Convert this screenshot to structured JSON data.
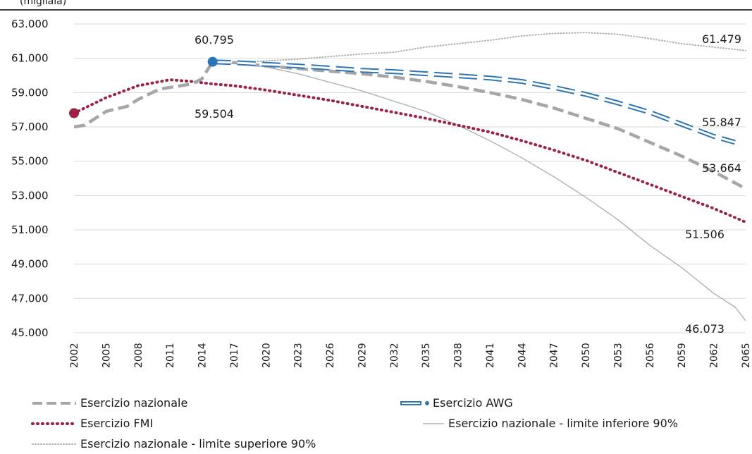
{
  "header": {
    "text": "(migliaia)"
  },
  "chart_data": {
    "type": "line",
    "title": "",
    "xlabel": "",
    "ylabel": "",
    "ylim": [
      45000,
      63000
    ],
    "y_ticks": [
      45000,
      47000,
      49000,
      51000,
      53000,
      55000,
      57000,
      59000,
      61000,
      63000
    ],
    "y_tick_labels": [
      "45.000",
      "47.000",
      "49.000",
      "51.000",
      "53.000",
      "55.000",
      "57.000",
      "59.000",
      "61.000",
      "63.000"
    ],
    "xlim": [
      2002,
      2065
    ],
    "x_ticks": [
      2002,
      2005,
      2008,
      2011,
      2014,
      2017,
      2020,
      2023,
      2026,
      2029,
      2032,
      2035,
      2038,
      2041,
      2044,
      2047,
      2050,
      2053,
      2056,
      2059,
      2062,
      2065
    ],
    "grid": "horizontal",
    "legend_position": "bottom",
    "series": [
      {
        "name": "Esercizio nazionale",
        "color": "#a6a6a6",
        "style": "dashed",
        "points": [
          [
            2002,
            57000
          ],
          [
            2003,
            57100
          ],
          [
            2005,
            57900
          ],
          [
            2007,
            58200
          ],
          [
            2008,
            58600
          ],
          [
            2010,
            59200
          ],
          [
            2012,
            59400
          ],
          [
            2013,
            59500
          ],
          [
            2014,
            59800
          ],
          [
            2015,
            60795
          ],
          [
            2017,
            60750
          ],
          [
            2020,
            60550
          ],
          [
            2023,
            60400
          ],
          [
            2026,
            60250
          ],
          [
            2029,
            60100
          ],
          [
            2032,
            59900
          ],
          [
            2035,
            59650
          ],
          [
            2038,
            59350
          ],
          [
            2041,
            59000
          ],
          [
            2044,
            58600
          ],
          [
            2047,
            58100
          ],
          [
            2050,
            57500
          ],
          [
            2053,
            56900
          ],
          [
            2056,
            56100
          ],
          [
            2059,
            55300
          ],
          [
            2062,
            54400
          ],
          [
            2065,
            53400
          ]
        ],
        "end_label": "53.664"
      },
      {
        "name": "Esercizio AWG",
        "color": "#2e75b6",
        "style": "double",
        "points": [
          [
            2015,
            60795
          ],
          [
            2017,
            60750
          ],
          [
            2020,
            60650
          ],
          [
            2023,
            60550
          ],
          [
            2026,
            60430
          ],
          [
            2029,
            60300
          ],
          [
            2032,
            60220
          ],
          [
            2035,
            60100
          ],
          [
            2038,
            59980
          ],
          [
            2041,
            59850
          ],
          [
            2044,
            59650
          ],
          [
            2047,
            59300
          ],
          [
            2050,
            58900
          ],
          [
            2053,
            58400
          ],
          [
            2056,
            57850
          ],
          [
            2059,
            57150
          ],
          [
            2062,
            56450
          ],
          [
            2064,
            56100
          ]
        ],
        "start_marker": true,
        "start_label": "60.795",
        "end_label": "55.847"
      },
      {
        "name": "Esercizio FMI",
        "color": "#9b2242",
        "style": "dotted",
        "points": [
          [
            2002,
            57800
          ],
          [
            2005,
            58700
          ],
          [
            2008,
            59400
          ],
          [
            2011,
            59750
          ],
          [
            2013,
            59650
          ],
          [
            2015,
            59504
          ],
          [
            2017,
            59400
          ],
          [
            2020,
            59150
          ],
          [
            2023,
            58850
          ],
          [
            2026,
            58550
          ],
          [
            2029,
            58200
          ],
          [
            2032,
            57850
          ],
          [
            2035,
            57500
          ],
          [
            2038,
            57100
          ],
          [
            2041,
            56700
          ],
          [
            2044,
            56200
          ],
          [
            2047,
            55650
          ],
          [
            2050,
            55050
          ],
          [
            2053,
            54350
          ],
          [
            2056,
            53650
          ],
          [
            2059,
            52950
          ],
          [
            2062,
            52250
          ],
          [
            2065,
            51450
          ]
        ],
        "start_marker": true,
        "start_label": "59.504",
        "end_label": "51.506"
      },
      {
        "name": "Esercizio nazionale - limite inferiore 90%",
        "color": "#b0b0b0",
        "style": "solid",
        "points": [
          [
            2015,
            60795
          ],
          [
            2017,
            60700
          ],
          [
            2020,
            60500
          ],
          [
            2023,
            60100
          ],
          [
            2026,
            59600
          ],
          [
            2029,
            59100
          ],
          [
            2032,
            58500
          ],
          [
            2035,
            57900
          ],
          [
            2038,
            57100
          ],
          [
            2041,
            56200
          ],
          [
            2044,
            55200
          ],
          [
            2047,
            54100
          ],
          [
            2050,
            52900
          ],
          [
            2053,
            51600
          ],
          [
            2056,
            50100
          ],
          [
            2059,
            48800
          ],
          [
            2062,
            47300
          ],
          [
            2064,
            46500
          ],
          [
            2065,
            45700
          ]
        ],
        "end_label": "46.073"
      },
      {
        "name": "Esercizio nazionale - limite superiore 90%",
        "color": "#b0b0b0",
        "style": "fine-dotted",
        "points": [
          [
            2015,
            60795
          ],
          [
            2017,
            60720
          ],
          [
            2020,
            60850
          ],
          [
            2023,
            60950
          ],
          [
            2026,
            61100
          ],
          [
            2029,
            61250
          ],
          [
            2032,
            61350
          ],
          [
            2035,
            61650
          ],
          [
            2038,
            61850
          ],
          [
            2041,
            62050
          ],
          [
            2044,
            62300
          ],
          [
            2047,
            62450
          ],
          [
            2050,
            62500
          ],
          [
            2053,
            62400
          ],
          [
            2056,
            62150
          ],
          [
            2059,
            61850
          ],
          [
            2062,
            61650
          ],
          [
            2065,
            61450
          ]
        ],
        "end_label": "61.479"
      }
    ]
  }
}
